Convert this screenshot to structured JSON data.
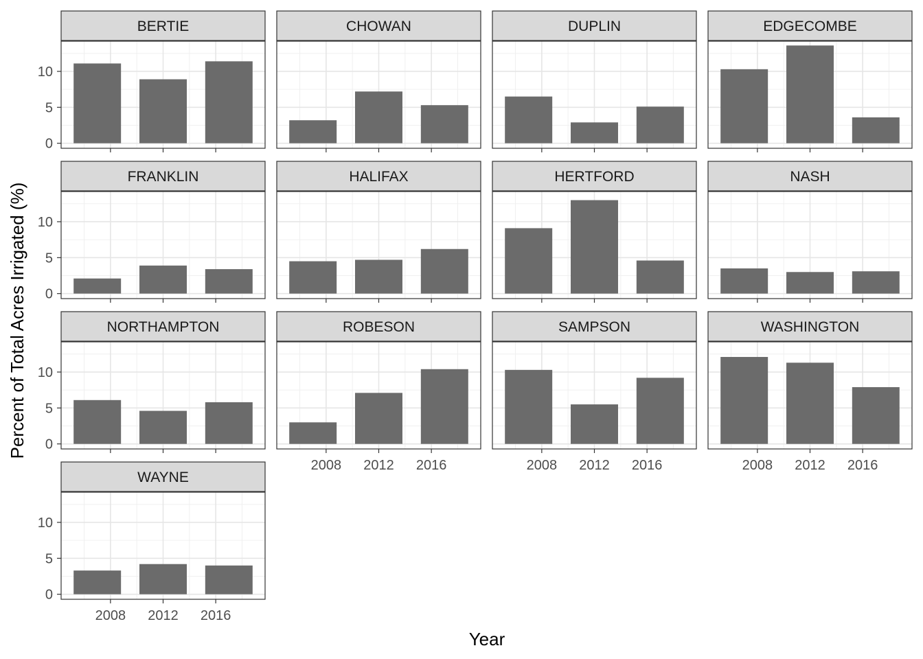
{
  "chart_data": {
    "type": "bar",
    "layout": "facet_wrap",
    "ncol": 4,
    "xlabel": "Year",
    "ylabel": "Percent of Total Acres Irrigated (%)",
    "x": [
      2007,
      2012,
      2017
    ],
    "x_ticks": [
      2008,
      2012,
      2016
    ],
    "xlim": [
      2004.25,
      2019.75
    ],
    "y_ticks": [
      0,
      5,
      10
    ],
    "ylim": [
      -0.7,
      14.2
    ],
    "grid": true,
    "bar_color": "#6b6b6b",
    "panels": [
      {
        "name": "BERTIE",
        "values": [
          11.1,
          8.9,
          11.4
        ]
      },
      {
        "name": "CHOWAN",
        "values": [
          3.2,
          7.2,
          5.3
        ]
      },
      {
        "name": "DUPLIN",
        "values": [
          6.5,
          2.9,
          5.1
        ]
      },
      {
        "name": "EDGECOMBE",
        "values": [
          10.3,
          13.6,
          3.6
        ]
      },
      {
        "name": "FRANKLIN",
        "values": [
          2.1,
          3.9,
          3.4
        ]
      },
      {
        "name": "HALIFAX",
        "values": [
          4.5,
          4.7,
          6.2
        ]
      },
      {
        "name": "HERTFORD",
        "values": [
          9.1,
          13.0,
          4.6
        ]
      },
      {
        "name": "NASH",
        "values": [
          3.5,
          3.0,
          3.1
        ]
      },
      {
        "name": "NORTHAMPTON",
        "values": [
          6.1,
          4.6,
          5.8
        ]
      },
      {
        "name": "ROBESON",
        "values": [
          3.0,
          7.1,
          10.4
        ]
      },
      {
        "name": "SAMPSON",
        "values": [
          10.3,
          5.5,
          9.2
        ]
      },
      {
        "name": "WASHINGTON",
        "values": [
          12.1,
          11.3,
          7.9
        ]
      },
      {
        "name": "WAYNE",
        "values": [
          3.3,
          4.2,
          4.0
        ]
      }
    ]
  }
}
